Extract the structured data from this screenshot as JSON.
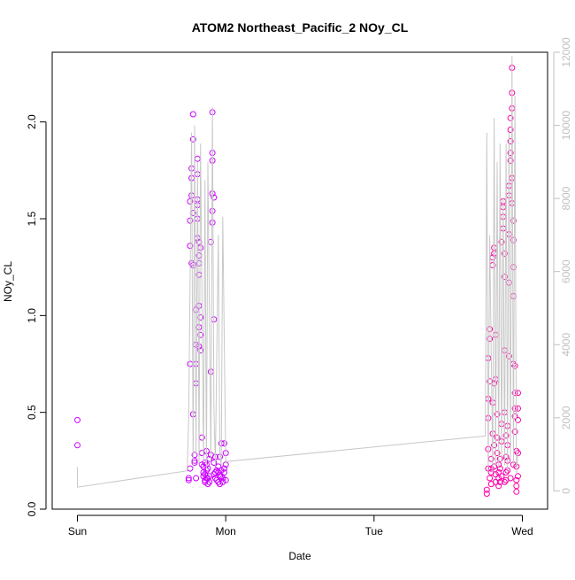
{
  "chart_data": {
    "type": "scatter",
    "title": "ATOM2 Northeast_Pacific_2 NOy_CL",
    "xlabel": "Date",
    "ylabel": "NOy_CL",
    "x_ticks": [
      {
        "label": "Sun",
        "day": 0
      },
      {
        "label": "Mon",
        "day": 1
      },
      {
        "label": "Tue",
        "day": 2
      },
      {
        "label": "Wed",
        "day": 3
      }
    ],
    "x_range_days": [
      -0.17,
      3.17
    ],
    "ylim": [
      0,
      2.36
    ],
    "y_ticks": [
      0.0,
      0.5,
      1.0,
      1.5,
      2.0
    ],
    "y_tick_labels": [
      "0.0",
      "0.5",
      "1.0",
      "1.5",
      "2.0"
    ],
    "y2_range": [
      -500,
      12000
    ],
    "y2_ticks": [
      0,
      2000,
      4000,
      6000,
      8000,
      10000,
      12000
    ],
    "y2_tick_labels": [
      "0",
      "2000",
      "4000",
      "6000",
      "8000",
      "10000",
      "12000"
    ],
    "grid": false,
    "legend": "none",
    "colors": {
      "noy_early": "#cc00ff",
      "noy_late": "#ff00aa",
      "altitude_line": "#c8c8c8",
      "right_axis": "#c0c0c0",
      "frame": "#000000"
    },
    "series": [
      {
        "type": "scatter",
        "axis": "left",
        "color_key": "noy_early",
        "points": [
          [
            0.0,
            0.46
          ],
          [
            0.0,
            0.33
          ],
          [
            0.75,
            0.16
          ],
          [
            0.75,
            0.15
          ],
          [
            0.76,
            0.21
          ],
          [
            0.76,
            0.75
          ],
          [
            0.76,
            1.36
          ],
          [
            0.76,
            1.49
          ],
          [
            0.76,
            1.59
          ],
          [
            0.77,
            1.27
          ],
          [
            0.77,
            1.62
          ],
          [
            0.77,
            1.71
          ],
          [
            0.77,
            1.76
          ],
          [
            0.78,
            1.91
          ],
          [
            0.78,
            2.04
          ],
          [
            0.78,
            0.49
          ],
          [
            0.78,
            1.26
          ],
          [
            0.78,
            1.53
          ],
          [
            0.79,
            0.24
          ],
          [
            0.79,
            0.28
          ],
          [
            0.79,
            0.25
          ],
          [
            0.8,
            0.16
          ],
          [
            0.8,
            1.03
          ],
          [
            0.8,
            0.85
          ],
          [
            0.8,
            0.75
          ],
          [
            0.8,
            0.65
          ],
          [
            0.81,
            1.81
          ],
          [
            0.81,
            1.73
          ],
          [
            0.81,
            1.6
          ],
          [
            0.81,
            1.57
          ],
          [
            0.81,
            1.5
          ],
          [
            0.81,
            1.4
          ],
          [
            0.82,
            1.38
          ],
          [
            0.82,
            1.31
          ],
          [
            0.82,
            1.27
          ],
          [
            0.82,
            1.21
          ],
          [
            0.82,
            1.05
          ],
          [
            0.82,
            0.94
          ],
          [
            0.82,
            0.84
          ],
          [
            0.83,
            1.35
          ],
          [
            0.83,
            0.99
          ],
          [
            0.83,
            0.82
          ],
          [
            0.83,
            0.9
          ],
          [
            0.84,
            0.37
          ],
          [
            0.84,
            0.29
          ],
          [
            0.84,
            0.23
          ],
          [
            0.85,
            0.22
          ],
          [
            0.85,
            0.19
          ],
          [
            0.85,
            0.17
          ],
          [
            0.86,
            0.14
          ],
          [
            0.86,
            0.15
          ],
          [
            0.86,
            0.18
          ],
          [
            0.87,
            0.2
          ],
          [
            0.87,
            0.23
          ],
          [
            0.87,
            0.3
          ],
          [
            0.88,
            0.16
          ],
          [
            0.88,
            0.13
          ],
          [
            0.88,
            0.21
          ],
          [
            0.89,
            0.17
          ],
          [
            0.89,
            0.14
          ],
          [
            0.89,
            0.26
          ],
          [
            0.9,
            0.71
          ],
          [
            0.9,
            1.38
          ],
          [
            0.91,
            1.48
          ],
          [
            0.91,
            1.54
          ],
          [
            0.91,
            1.63
          ],
          [
            0.91,
            1.8
          ],
          [
            0.91,
            1.84
          ],
          [
            0.91,
            2.05
          ],
          [
            0.92,
            1.61
          ],
          [
            0.92,
            0.98
          ],
          [
            0.92,
            0.18
          ],
          [
            0.93,
            0.27
          ],
          [
            0.93,
            0.16
          ],
          [
            0.94,
            0.2
          ],
          [
            0.94,
            0.15
          ],
          [
            0.95,
            0.14
          ],
          [
            0.95,
            0.19
          ],
          [
            0.95,
            0.22
          ],
          [
            0.96,
            0.13
          ],
          [
            0.96,
            0.27
          ],
          [
            0.97,
            0.34
          ],
          [
            0.97,
            0.17
          ],
          [
            0.97,
            0.2
          ],
          [
            0.98,
            0.14
          ],
          [
            0.98,
            0.16
          ],
          [
            0.99,
            0.19
          ],
          [
            0.99,
            0.21
          ],
          [
            0.99,
            0.34
          ],
          [
            1.0,
            0.29
          ],
          [
            1.0,
            0.15
          ],
          [
            1.0,
            0.23
          ],
          [
            0.86,
            0.24
          ],
          [
            0.87,
            0.16
          ],
          [
            0.9,
            0.28
          ],
          [
            0.92,
            0.24
          ],
          [
            0.93,
            0.19
          ],
          [
            0.96,
            0.17
          ]
        ]
      },
      {
        "type": "scatter",
        "axis": "left",
        "color_key": "noy_late",
        "points": [
          [
            2.76,
            0.08
          ],
          [
            2.76,
            0.1
          ],
          [
            2.77,
            0.21
          ],
          [
            2.77,
            0.31
          ],
          [
            2.77,
            0.47
          ],
          [
            2.77,
            0.57
          ],
          [
            2.77,
            0.78
          ],
          [
            2.78,
            0.88
          ],
          [
            2.78,
            0.93
          ],
          [
            2.78,
            0.66
          ],
          [
            2.78,
            0.16
          ],
          [
            2.79,
            0.13
          ],
          [
            2.79,
            0.21
          ],
          [
            2.79,
            0.26
          ],
          [
            2.8,
            0.39
          ],
          [
            2.8,
            0.55
          ],
          [
            2.8,
            1.26
          ],
          [
            2.8,
            1.3
          ],
          [
            2.81,
            1.35
          ],
          [
            2.81,
            1.32
          ],
          [
            2.81,
            0.65
          ],
          [
            2.81,
            0.33
          ],
          [
            2.82,
            0.18
          ],
          [
            2.82,
            0.14
          ],
          [
            2.82,
            0.9
          ],
          [
            2.82,
            0.67
          ],
          [
            2.83,
            0.49
          ],
          [
            2.83,
            0.37
          ],
          [
            2.83,
            0.29
          ],
          [
            2.84,
            0.23
          ],
          [
            2.84,
            0.19
          ],
          [
            2.84,
            0.16
          ],
          [
            2.85,
            0.14
          ],
          [
            2.85,
            0.21
          ],
          [
            2.85,
            0.26
          ],
          [
            2.86,
            0.35
          ],
          [
            2.86,
            0.44
          ],
          [
            2.86,
            1.38
          ],
          [
            2.87,
            1.51
          ],
          [
            2.87,
            1.56
          ],
          [
            2.87,
            1.59
          ],
          [
            2.87,
            1.45
          ],
          [
            2.88,
            1.32
          ],
          [
            2.88,
            1.2
          ],
          [
            2.88,
            0.82
          ],
          [
            2.88,
            0.5
          ],
          [
            2.89,
            0.38
          ],
          [
            2.89,
            0.27
          ],
          [
            2.89,
            0.19
          ],
          [
            2.89,
            0.15
          ],
          [
            2.9,
            0.2
          ],
          [
            2.9,
            0.25
          ],
          [
            2.9,
            0.33
          ],
          [
            2.9,
            0.43
          ],
          [
            2.91,
            0.79
          ],
          [
            2.91,
            1.17
          ],
          [
            2.91,
            1.42
          ],
          [
            2.91,
            1.62
          ],
          [
            2.91,
            1.67
          ],
          [
            2.92,
            1.8
          ],
          [
            2.92,
            1.84
          ],
          [
            2.92,
            1.9
          ],
          [
            2.92,
            1.96
          ],
          [
            2.92,
            2.02
          ],
          [
            2.93,
            2.07
          ],
          [
            2.93,
            2.15
          ],
          [
            2.93,
            2.28
          ],
          [
            2.93,
            1.71
          ],
          [
            2.93,
            1.58
          ],
          [
            2.94,
            1.49
          ],
          [
            2.94,
            1.39
          ],
          [
            2.94,
            1.25
          ],
          [
            2.94,
            1.1
          ],
          [
            2.94,
            0.75
          ],
          [
            2.95,
            0.74
          ],
          [
            2.95,
            0.6
          ],
          [
            2.95,
            0.52
          ],
          [
            2.95,
            0.48
          ],
          [
            2.95,
            0.4
          ],
          [
            2.96,
            0.3
          ],
          [
            2.96,
            0.22
          ],
          [
            2.96,
            0.15
          ],
          [
            2.96,
            0.12
          ],
          [
            2.97,
            0.17
          ],
          [
            2.97,
            0.29
          ],
          [
            2.97,
            0.46
          ],
          [
            2.97,
            0.52
          ],
          [
            2.97,
            0.6
          ],
          [
            2.96,
            0.09
          ],
          [
            2.84,
            0.12
          ],
          [
            2.86,
            0.17
          ],
          [
            2.88,
            0.14
          ],
          [
            2.92,
            0.16
          ],
          [
            2.94,
            0.23
          ],
          [
            2.79,
            0.19
          ],
          [
            2.81,
            0.22
          ]
        ]
      },
      {
        "type": "line",
        "axis": "right",
        "color_key": "altitude_line",
        "points": [
          [
            0.0,
            650
          ],
          [
            0.0,
            100
          ],
          [
            0.74,
            550
          ],
          [
            0.75,
            2000
          ],
          [
            0.77,
            9800
          ],
          [
            0.78,
            600
          ],
          [
            0.79,
            10000
          ],
          [
            0.8,
            1000
          ],
          [
            0.81,
            9000
          ],
          [
            0.82,
            700
          ],
          [
            0.83,
            9500
          ],
          [
            0.85,
            800
          ],
          [
            0.86,
            8500
          ],
          [
            0.87,
            600
          ],
          [
            0.88,
            9000
          ],
          [
            0.9,
            800
          ],
          [
            0.91,
            10500
          ],
          [
            0.92,
            2300
          ],
          [
            0.93,
            700
          ],
          [
            0.95,
            7000
          ],
          [
            0.96,
            1000
          ],
          [
            0.97,
            700
          ],
          [
            0.98,
            7500
          ],
          [
            1.0,
            800
          ],
          [
            2.75,
            1500
          ],
          [
            2.76,
            9800
          ],
          [
            2.77,
            500
          ],
          [
            2.78,
            7000
          ],
          [
            2.8,
            500
          ],
          [
            2.81,
            10200
          ],
          [
            2.82,
            700
          ],
          [
            2.83,
            9000
          ],
          [
            2.84,
            600
          ],
          [
            2.85,
            9500
          ],
          [
            2.86,
            800
          ],
          [
            2.87,
            8000
          ],
          [
            2.88,
            700
          ],
          [
            2.89,
            9500
          ],
          [
            2.9,
            600
          ],
          [
            2.91,
            9800
          ],
          [
            2.92,
            800
          ],
          [
            2.93,
            11900
          ],
          [
            2.94,
            700
          ],
          [
            2.95,
            10800
          ],
          [
            2.96,
            500
          ],
          [
            2.97,
            1000
          ]
        ]
      }
    ]
  }
}
